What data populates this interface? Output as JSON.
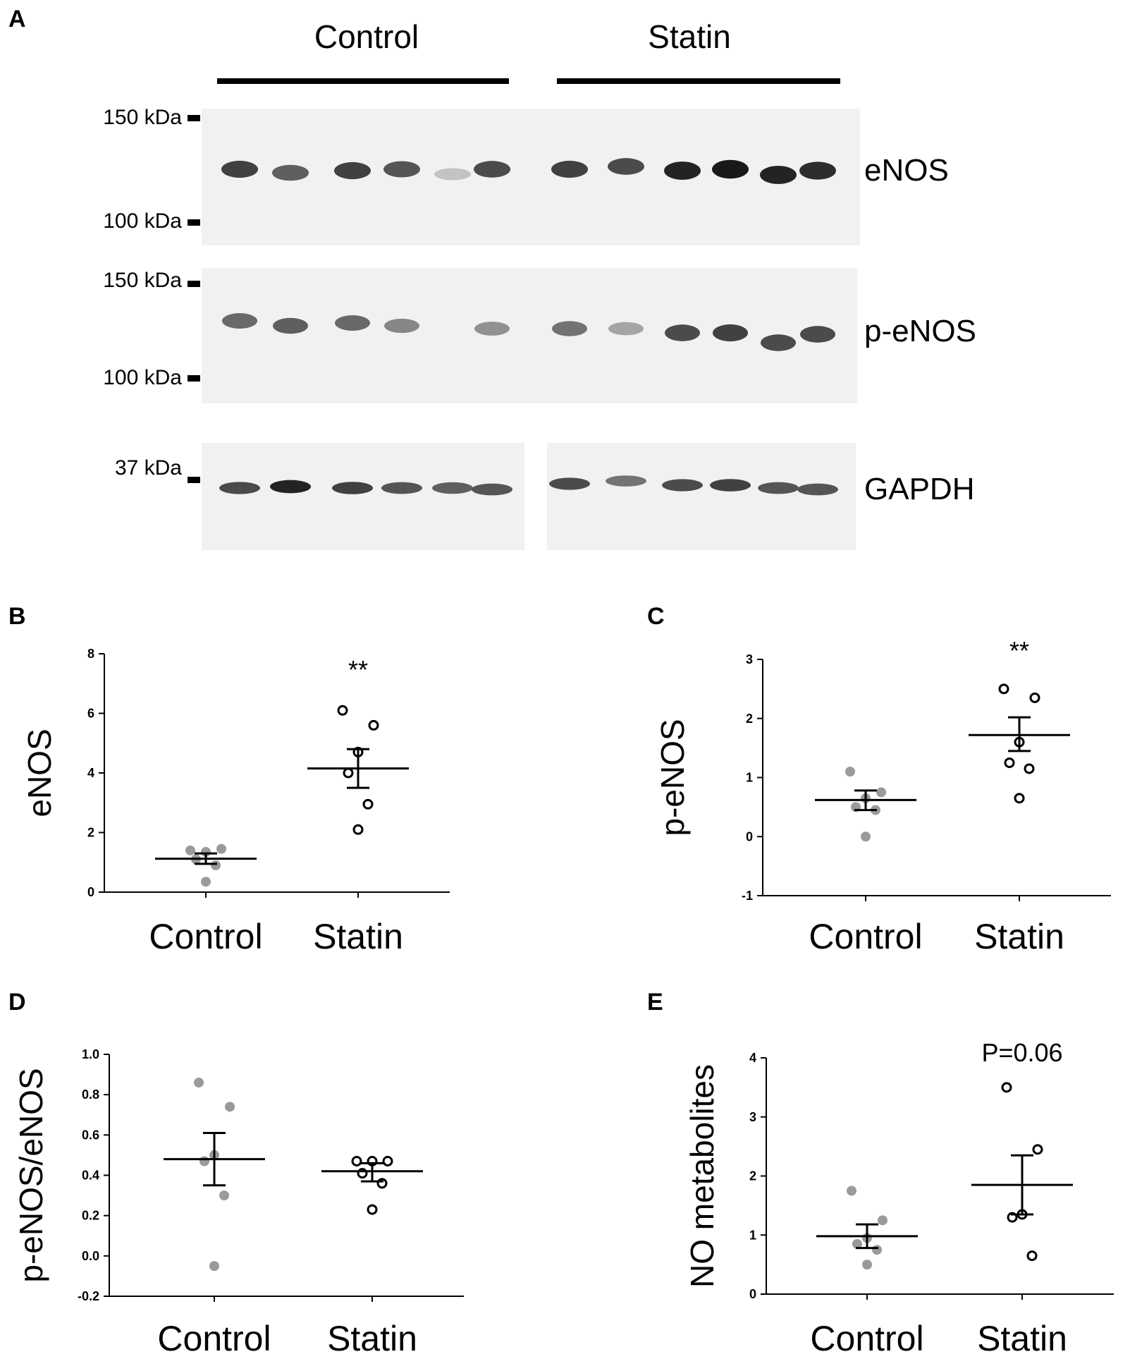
{
  "panel_a": {
    "letter": "A",
    "groups": [
      "Control",
      "Statin"
    ],
    "blots": [
      {
        "protein": "eNOS",
        "markers": [
          "150 kDa",
          "100 kDa"
        ],
        "control_band_intensity": [
          0.8,
          0.65,
          0.8,
          0.7,
          0.15,
          0.75
        ],
        "statin_band_intensity": [
          0.8,
          0.75,
          0.95,
          1.0,
          0.95,
          0.9
        ]
      },
      {
        "protein": "p-eNOS",
        "markers": [
          "150 kDa",
          "100 kDa"
        ],
        "control_band_intensity": [
          0.6,
          0.65,
          0.6,
          0.45,
          0.0,
          0.4
        ],
        "statin_band_intensity": [
          0.55,
          0.3,
          0.75,
          0.8,
          0.75,
          0.75
        ]
      },
      {
        "protein": "GAPDH",
        "markers": [
          "37 kDa"
        ],
        "control_band_intensity": [
          0.75,
          0.95,
          0.8,
          0.7,
          0.65,
          0.7
        ],
        "statin_band_intensity": [
          0.75,
          0.55,
          0.75,
          0.8,
          0.7,
          0.7
        ]
      }
    ]
  },
  "chart_data": [
    {
      "panel": "B",
      "type": "scatter",
      "ylabel": "eNOS",
      "categories": [
        "Control",
        "Statin"
      ],
      "ylim": [
        0,
        8
      ],
      "yticks": [
        "0",
        "2",
        "4",
        "6",
        "8"
      ],
      "annotation": "**",
      "series": [
        {
          "name": "Control",
          "values": [
            1.4,
            1.45,
            1.35,
            1.1,
            0.9,
            0.35
          ],
          "mean": 1.12,
          "sem_low": 0.95,
          "sem_high": 1.3
        },
        {
          "name": "Statin",
          "values": [
            6.1,
            5.6,
            4.7,
            4.0,
            2.95,
            2.1
          ],
          "mean": 4.15,
          "sem_low": 3.5,
          "sem_high": 4.8
        }
      ]
    },
    {
      "panel": "C",
      "type": "scatter",
      "ylabel": "p-eNOS",
      "categories": [
        "Control",
        "Statin"
      ],
      "ylim": [
        -1,
        3
      ],
      "yticks": [
        "-1",
        "0",
        "1",
        "2",
        "3"
      ],
      "annotation": "**",
      "series": [
        {
          "name": "Control",
          "values": [
            1.1,
            0.75,
            0.65,
            0.5,
            0.45,
            0.0
          ],
          "mean": 0.62,
          "sem_low": 0.45,
          "sem_high": 0.78
        },
        {
          "name": "Statin",
          "values": [
            2.5,
            2.35,
            1.6,
            1.25,
            1.15,
            0.65
          ],
          "mean": 1.72,
          "sem_low": 1.45,
          "sem_high": 2.02
        }
      ]
    },
    {
      "panel": "D",
      "type": "scatter",
      "ylabel": "p-eNOS/eNOS",
      "categories": [
        "Control",
        "Statin"
      ],
      "ylim": [
        -0.2,
        1.0
      ],
      "yticks": [
        "-0.2",
        "0.0",
        "0.2",
        "0.4",
        "0.6",
        "0.8",
        "1.0"
      ],
      "annotation": "",
      "series": [
        {
          "name": "Control",
          "values": [
            0.86,
            0.74,
            0.5,
            0.47,
            0.3,
            -0.05
          ],
          "mean": 0.48,
          "sem_low": 0.35,
          "sem_high": 0.61
        },
        {
          "name": "Statin",
          "values": [
            0.47,
            0.47,
            0.47,
            0.41,
            0.36,
            0.23
          ],
          "mean": 0.42,
          "sem_low": 0.37,
          "sem_high": 0.46
        }
      ]
    },
    {
      "panel": "E",
      "type": "scatter",
      "ylabel": "NO metabolites",
      "categories": [
        "Control",
        "Statin"
      ],
      "ylim": [
        0,
        4
      ],
      "yticks": [
        "0",
        "1",
        "2",
        "3",
        "4"
      ],
      "annotation": "P=0.06",
      "series": [
        {
          "name": "Control",
          "values": [
            1.75,
            1.25,
            0.95,
            0.85,
            0.75,
            0.5
          ],
          "mean": 0.98,
          "sem_low": 0.78,
          "sem_high": 1.18
        },
        {
          "name": "Statin",
          "values": [
            3.5,
            2.45,
            1.35,
            1.3,
            0.65
          ],
          "mean": 1.85,
          "sem_low": 1.35,
          "sem_high": 2.35
        }
      ]
    }
  ]
}
